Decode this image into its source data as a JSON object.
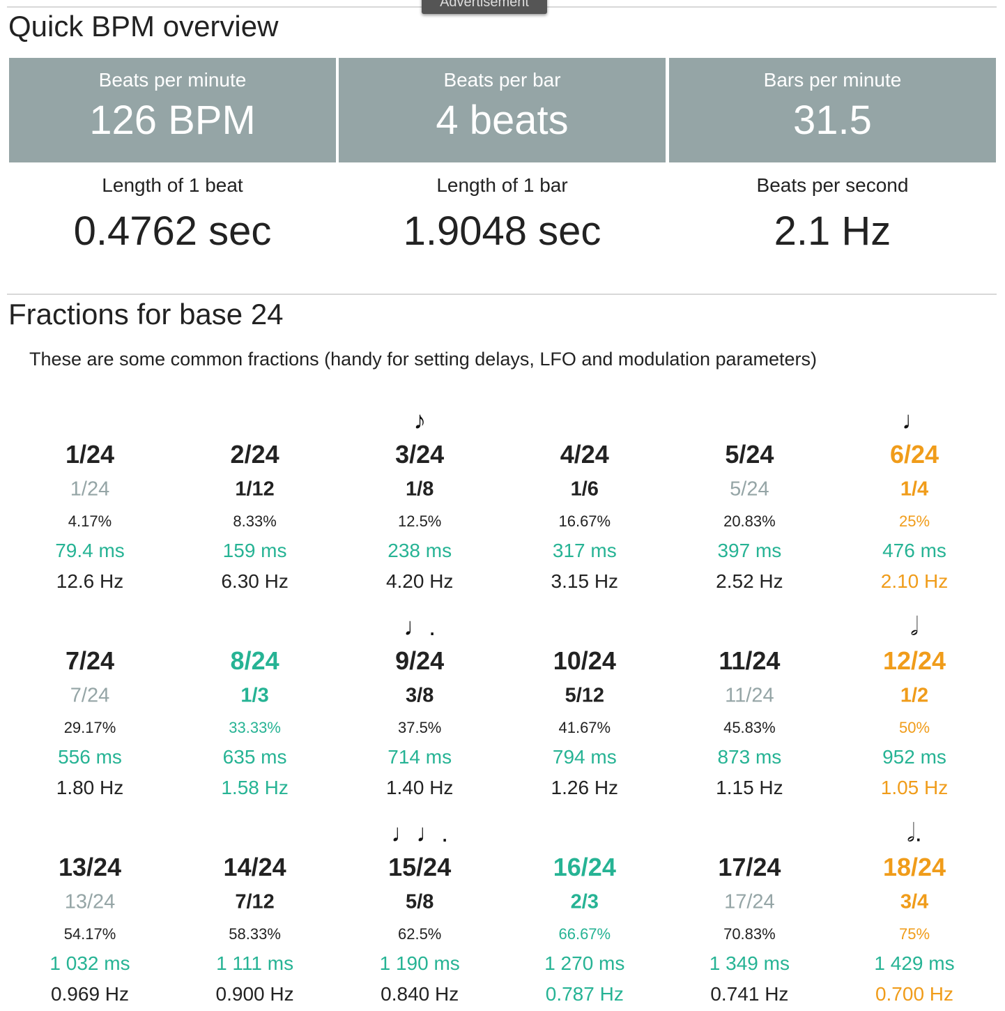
{
  "ad_label": "Advertisement",
  "overview": {
    "title": "Quick BPM overview",
    "boxes": [
      {
        "label": "Beats per minute",
        "value": "126 BPM"
      },
      {
        "label": "Beats per bar",
        "value": "4 beats"
      },
      {
        "label": "Bars per minute",
        "value": "31.5"
      }
    ],
    "stats": [
      {
        "label": "Length of 1 beat",
        "value": "0.4762 sec"
      },
      {
        "label": "Length of 1 bar",
        "value": "1.9048 sec"
      },
      {
        "label": "Beats per second",
        "value": "2.1 Hz"
      }
    ]
  },
  "fractions": {
    "title": "Fractions for base 24",
    "description": "These are some common fractions (handy for setting delays, LFO and modulation parameters)",
    "cells": [
      {
        "fraction": "1/24",
        "simplified": "1/24",
        "percent": "4.17%",
        "ms": "79.4 ms",
        "hz": "12.6 Hz"
      },
      {
        "fraction": "2/24",
        "simplified": "1/12",
        "percent": "8.33%",
        "ms": "159 ms",
        "hz": "6.30 Hz"
      },
      {
        "note": "♪",
        "fraction": "3/24",
        "simplified": "1/8",
        "percent": "12.5%",
        "ms": "238 ms",
        "hz": "4.20 Hz"
      },
      {
        "fraction": "4/24",
        "simplified": "1/6",
        "percent": "16.67%",
        "ms": "317 ms",
        "hz": "3.15 Hz"
      },
      {
        "fraction": "5/24",
        "simplified": "5/24",
        "percent": "20.83%",
        "ms": "397 ms",
        "hz": "2.52 Hz"
      },
      {
        "note": "♩",
        "fraction": "6/24",
        "simplified": "1/4",
        "percent": "25%",
        "ms": "476 ms",
        "hz": "2.10 Hz",
        "color": "orange"
      },
      {
        "fraction": "7/24",
        "simplified": "7/24",
        "percent": "29.17%",
        "ms": "556 ms",
        "hz": "1.80 Hz"
      },
      {
        "fraction": "8/24",
        "simplified": "1/3",
        "percent": "33.33%",
        "ms": "635 ms",
        "hz": "1.58 Hz",
        "color": "green"
      },
      {
        "note": "♩.",
        "fraction": "9/24",
        "simplified": "3/8",
        "percent": "37.5%",
        "ms": "714 ms",
        "hz": "1.40 Hz"
      },
      {
        "fraction": "10/24",
        "simplified": "5/12",
        "percent": "41.67%",
        "ms": "794 ms",
        "hz": "1.26 Hz"
      },
      {
        "fraction": "11/24",
        "simplified": "11/24",
        "percent": "45.83%",
        "ms": "873 ms",
        "hz": "1.15 Hz"
      },
      {
        "note": "𝅗𝅥",
        "fraction": "12/24",
        "simplified": "1/2",
        "percent": "50%",
        "ms": "952 ms",
        "hz": "1.05 Hz",
        "color": "orange"
      },
      {
        "fraction": "13/24",
        "simplified": "13/24",
        "percent": "54.17%",
        "ms": "1 032 ms",
        "hz": "0.969 Hz"
      },
      {
        "fraction": "14/24",
        "simplified": "7/12",
        "percent": "58.33%",
        "ms": "1 111 ms",
        "hz": "0.900 Hz"
      },
      {
        "note": "♩♩.",
        "fraction": "15/24",
        "simplified": "5/8",
        "percent": "62.5%",
        "ms": "1 190 ms",
        "hz": "0.840 Hz"
      },
      {
        "fraction": "16/24",
        "simplified": "2/3",
        "percent": "66.67%",
        "ms": "1 270 ms",
        "hz": "0.787 Hz",
        "color": "green"
      },
      {
        "fraction": "17/24",
        "simplified": "17/24",
        "percent": "70.83%",
        "ms": "1 349 ms",
        "hz": "0.741 Hz"
      },
      {
        "note": "𝅗𝅥.",
        "fraction": "18/24",
        "simplified": "3/4",
        "percent": "75%",
        "ms": "1 429 ms",
        "hz": "0.700 Hz",
        "color": "orange"
      }
    ]
  }
}
